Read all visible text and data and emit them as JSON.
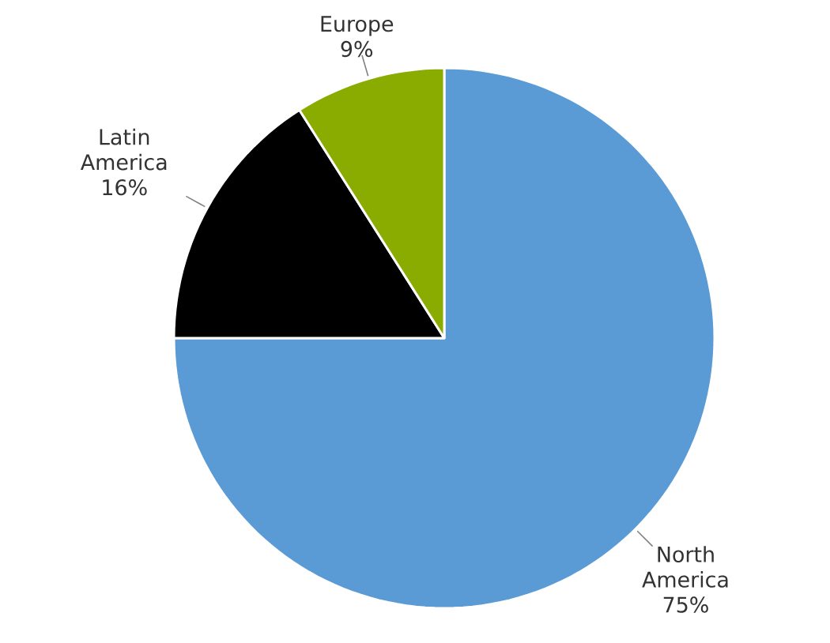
{
  "chart_data": {
    "type": "pie",
    "categories": [
      "North America",
      "Latin America",
      "Europe"
    ],
    "values": [
      75,
      16,
      9
    ],
    "colors": [
      "#5b9bd5",
      "#000000",
      "#8aab00"
    ],
    "value_labels": [
      "75%",
      "16%",
      "9%"
    ]
  }
}
